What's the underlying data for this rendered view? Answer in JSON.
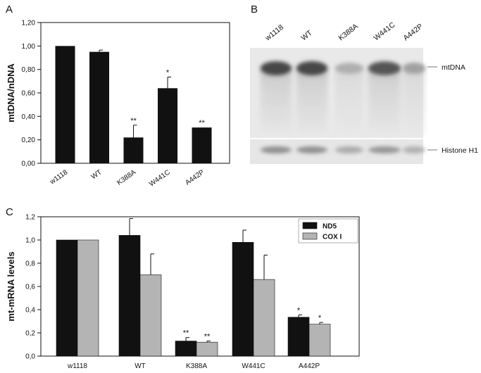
{
  "panels": {
    "a": "A",
    "b": "B",
    "c": "C"
  },
  "chart_data": [
    {
      "type": "bar",
      "ylabel": "mtDNA/nDNA",
      "ylim": [
        0,
        1.2
      ],
      "yticks": [
        "0,00",
        "0,20",
        "0,40",
        "0,60",
        "0,80",
        "1,00",
        "1,20"
      ],
      "categories": [
        "w1118",
        "WT",
        "K388A",
        "W441C",
        "A442P"
      ],
      "values": [
        1.0,
        0.95,
        0.22,
        0.64,
        0.305
      ],
      "errors": [
        0.0,
        0.015,
        0.105,
        0.095,
        0.0
      ],
      "annotations": [
        "",
        "",
        "**",
        "*",
        "**"
      ],
      "color": "#111111"
    },
    {
      "type": "bar",
      "ylabel": "mt-mRNA levels",
      "ylim": [
        0,
        1.2
      ],
      "yticks": [
        "0,0",
        "0,2",
        "0,4",
        "0,6",
        "0,8",
        "1,0",
        "1,2"
      ],
      "categories": [
        "w1118",
        "WT",
        "K388A",
        "W441C",
        "A442P"
      ],
      "legend_position": "top-right",
      "series": [
        {
          "name": "ND5",
          "color": "#111111",
          "values": [
            1.0,
            1.04,
            0.13,
            0.98,
            0.335
          ],
          "errors": [
            0.0,
            0.145,
            0.03,
            0.105,
            0.02
          ],
          "annotations": [
            "",
            "",
            "**",
            "",
            "*"
          ]
        },
        {
          "name": "COX I",
          "color": "#b4b4b4",
          "values": [
            1.0,
            0.7,
            0.12,
            0.66,
            0.275
          ],
          "errors": [
            0.0,
            0.18,
            0.01,
            0.21,
            0.015
          ],
          "annotations": [
            "",
            "",
            "**",
            "",
            "*"
          ]
        }
      ]
    }
  ],
  "blot": {
    "lanes": [
      "w1118",
      "WT",
      "K388A",
      "W441C",
      "A442P"
    ],
    "band_labels": [
      "mtDNA",
      "Histone H1"
    ]
  }
}
